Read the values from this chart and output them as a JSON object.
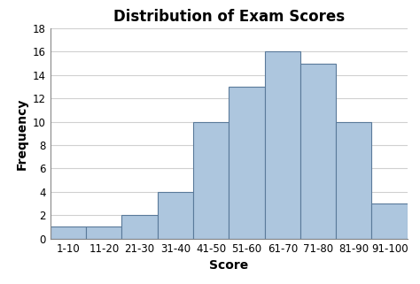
{
  "title": "Distribution of Exam Scores",
  "xlabel": "Score",
  "ylabel": "Frequency",
  "categories": [
    "1-10",
    "11-20",
    "21-30",
    "31-40",
    "41-50",
    "51-60",
    "61-70",
    "71-80",
    "81-90",
    "91-100"
  ],
  "values": [
    1,
    1,
    2,
    4,
    10,
    13,
    16,
    15,
    10,
    3
  ],
  "bar_color": "#adc6de",
  "bar_edgecolor": "#5a7a9a",
  "ylim": [
    0,
    18
  ],
  "yticks": [
    0,
    2,
    4,
    6,
    8,
    10,
    12,
    14,
    16,
    18
  ],
  "title_fontsize": 12,
  "axis_label_fontsize": 10,
  "tick_fontsize": 8.5,
  "background_color": "#ffffff",
  "grid_color": "#d0d0d0",
  "spine_color": "#888888"
}
